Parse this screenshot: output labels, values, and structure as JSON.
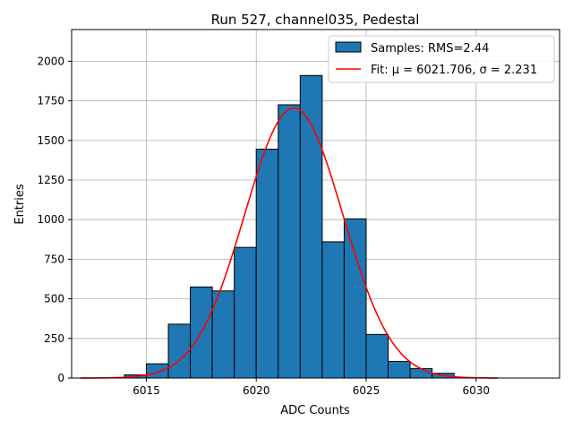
{
  "chart_data": {
    "type": "bar",
    "title": "Run 527, channel035, Pedestal",
    "xlabel": "ADC Counts",
    "ylabel": "Entries",
    "xlim": [
      6011.6,
      6033.8
    ],
    "ylim": [
      0,
      2200
    ],
    "xticks": [
      6015,
      6020,
      6025,
      6030
    ],
    "yticks": [
      0,
      250,
      500,
      750,
      1000,
      1250,
      1500,
      1750,
      2000
    ],
    "grid": true,
    "legend_position": "top-right",
    "series": [
      {
        "name": "Samples: RMS=2.44",
        "kind": "histogram",
        "color": "#1f77b4",
        "edge_color": "#000000",
        "bins": [
          {
            "x0": 6014,
            "x1": 6015,
            "value": 20
          },
          {
            "x0": 6015,
            "x1": 6016,
            "value": 90
          },
          {
            "x0": 6016,
            "x1": 6017,
            "value": 340
          },
          {
            "x0": 6017,
            "x1": 6018,
            "value": 575
          },
          {
            "x0": 6018,
            "x1": 6019,
            "value": 550
          },
          {
            "x0": 6019,
            "x1": 6020,
            "value": 825
          },
          {
            "x0": 6020,
            "x1": 6021,
            "value": 1445
          },
          {
            "x0": 6021,
            "x1": 6022,
            "value": 1725
          },
          {
            "x0": 6022,
            "x1": 6023,
            "value": 1910
          },
          {
            "x0": 6023,
            "x1": 6024,
            "value": 860
          },
          {
            "x0": 6024,
            "x1": 6025,
            "value": 1005
          },
          {
            "x0": 6025,
            "x1": 6026,
            "value": 275
          },
          {
            "x0": 6026,
            "x1": 6027,
            "value": 105
          },
          {
            "x0": 6027,
            "x1": 6028,
            "value": 60
          },
          {
            "x0": 6028,
            "x1": 6029,
            "value": 30
          }
        ]
      },
      {
        "name": "Fit: μ = 6021.706, σ = 2.231",
        "kind": "gaussian",
        "color": "#ff0000",
        "mu": 6021.706,
        "sigma": 2.231,
        "amplitude": 1705,
        "x_range": [
          6012,
          6031
        ]
      }
    ]
  }
}
